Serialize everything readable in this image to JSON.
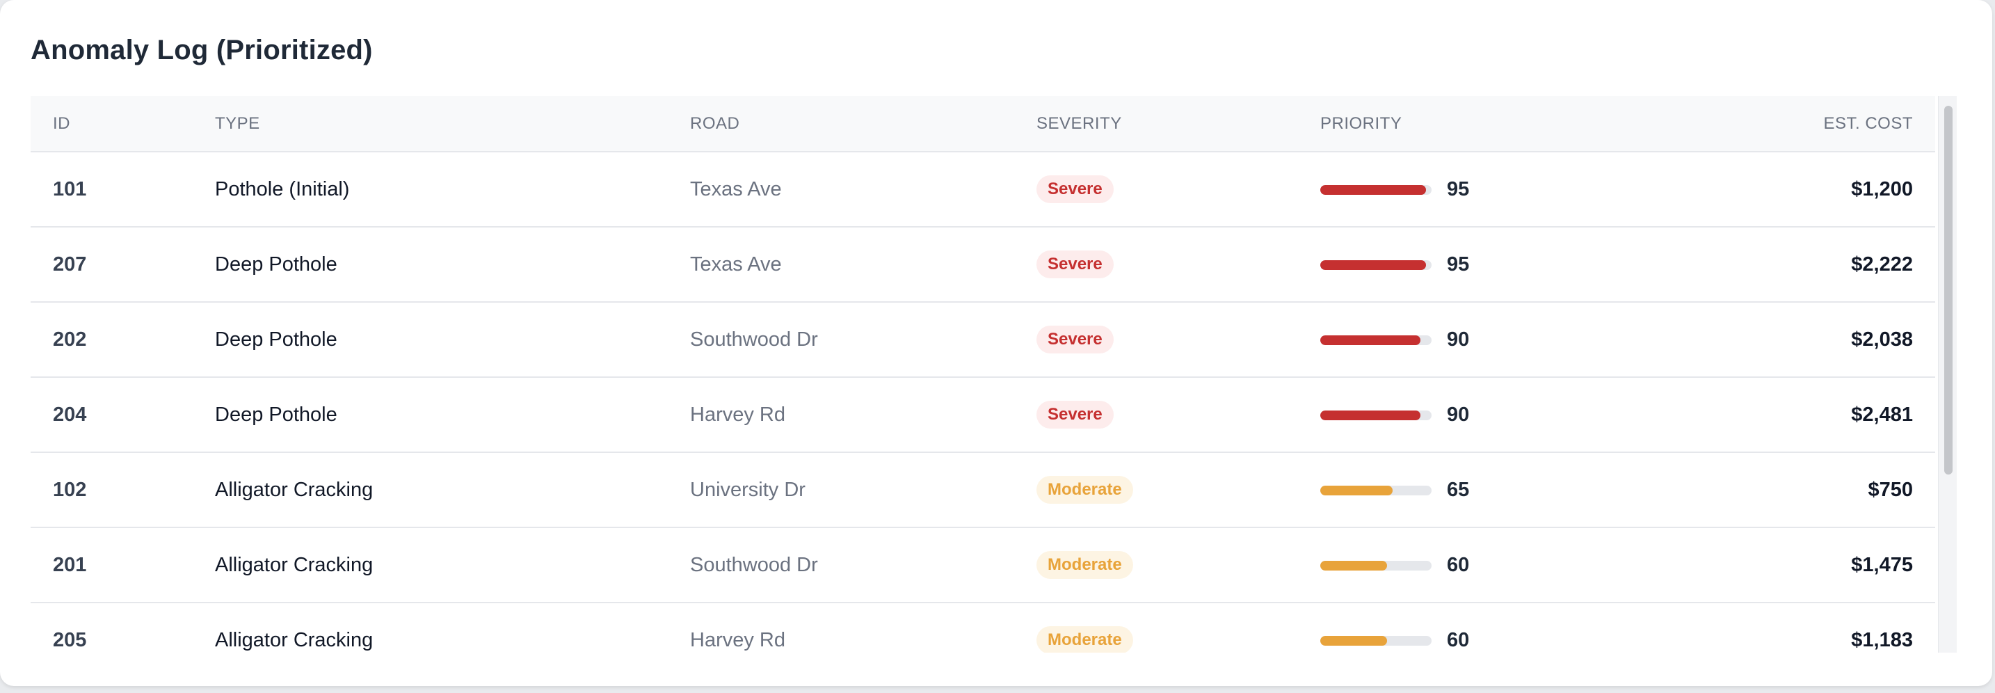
{
  "title": "Anomaly Log (Prioritized)",
  "columns": {
    "id": "ID",
    "type": "TYPE",
    "road": "ROAD",
    "severity": "SEVERITY",
    "priority": "PRIORITY",
    "cost": "EST. COST"
  },
  "colors": {
    "severe": "#c53030",
    "moderate": "#e8a33a"
  },
  "rows": [
    {
      "id": "101",
      "type": "Pothole (Initial)",
      "road": "Texas Ave",
      "severity": "Severe",
      "priority": "95",
      "cost": "$1,200"
    },
    {
      "id": "207",
      "type": "Deep Pothole",
      "road": "Texas Ave",
      "severity": "Severe",
      "priority": "95",
      "cost": "$2,222"
    },
    {
      "id": "202",
      "type": "Deep Pothole",
      "road": "Southwood Dr",
      "severity": "Severe",
      "priority": "90",
      "cost": "$2,038"
    },
    {
      "id": "204",
      "type": "Deep Pothole",
      "road": "Harvey Rd",
      "severity": "Severe",
      "priority": "90",
      "cost": "$2,481"
    },
    {
      "id": "102",
      "type": "Alligator Cracking",
      "road": "University Dr",
      "severity": "Moderate",
      "priority": "65",
      "cost": "$750"
    },
    {
      "id": "201",
      "type": "Alligator Cracking",
      "road": "Southwood Dr",
      "severity": "Moderate",
      "priority": "60",
      "cost": "$1,475"
    },
    {
      "id": "205",
      "type": "Alligator Cracking",
      "road": "Harvey Rd",
      "severity": "Moderate",
      "priority": "60",
      "cost": "$1,183"
    }
  ]
}
